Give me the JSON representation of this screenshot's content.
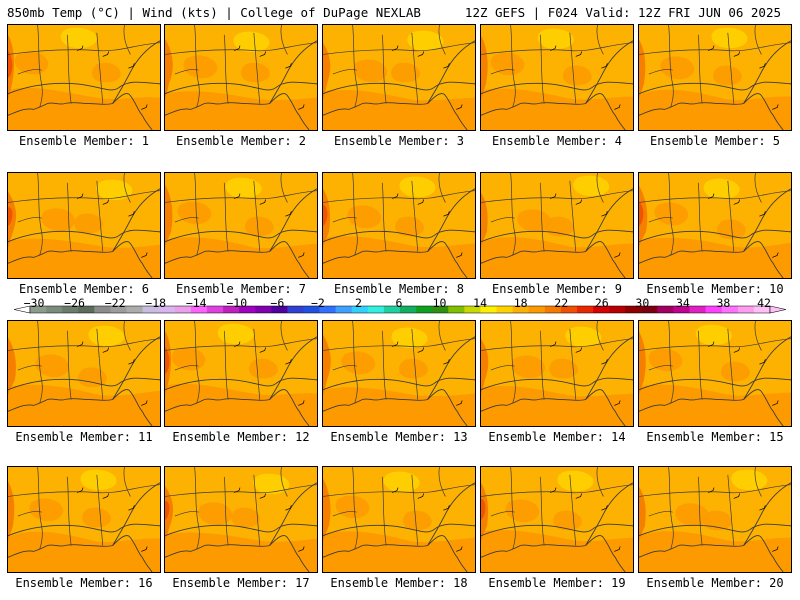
{
  "header": {
    "left": "850mb Temp (°C) | Wind (kts) | College of DuPage NEXLAB",
    "right": "12Z GEFS | F024 Valid: 12Z FRI JUN 06 2025"
  },
  "colorbar": {
    "tick_labels": [
      "−30",
      "−26",
      "−22",
      "−18",
      "−14",
      "−10",
      "−6",
      "−2",
      "2",
      "6",
      "10",
      "14",
      "18",
      "22",
      "26",
      "30",
      "34",
      "38",
      "42"
    ],
    "colors": [
      "#8c9c8c",
      "#7c8c7c",
      "#6c7c6c",
      "#5c6c5c",
      "#8c8c8c",
      "#9c9c9c",
      "#acacac",
      "#c8bce0",
      "#d8b4f0",
      "#e8a0e8",
      "#ff60ff",
      "#e040e0",
      "#c020c0",
      "#a000c0",
      "#8000b0",
      "#5000a0",
      "#3040d0",
      "#2050e0",
      "#3070ff",
      "#40a0ff",
      "#30d0ff",
      "#30f0e0",
      "#20d0a0",
      "#10b060",
      "#10a020",
      "#309010",
      "#80c000",
      "#c8d800",
      "#fff000",
      "#ffd200",
      "#fdb100",
      "#fd9a00",
      "#f57a00",
      "#f05000",
      "#e82800",
      "#d80000",
      "#b80000",
      "#900000",
      "#7a0010",
      "#a00060",
      "#c00090",
      "#e020c0",
      "#ff40ff",
      "#ff70ff",
      "#ff9cf0",
      "#ffc0f8"
    ]
  },
  "panels": [
    {
      "label": "Ensemble Member: 1"
    },
    {
      "label": "Ensemble Member: 2"
    },
    {
      "label": "Ensemble Member: 3"
    },
    {
      "label": "Ensemble Member: 4"
    },
    {
      "label": "Ensemble Member: 5"
    },
    {
      "label": "Ensemble Member: 6"
    },
    {
      "label": "Ensemble Member: 7"
    },
    {
      "label": "Ensemble Member: 8"
    },
    {
      "label": "Ensemble Member: 9"
    },
    {
      "label": "Ensemble Member: 10"
    },
    {
      "label": "Ensemble Member: 11"
    },
    {
      "label": "Ensemble Member: 12"
    },
    {
      "label": "Ensemble Member: 13"
    },
    {
      "label": "Ensemble Member: 14"
    },
    {
      "label": "Ensemble Member: 15"
    },
    {
      "label": "Ensemble Member: 16"
    },
    {
      "label": "Ensemble Member: 17"
    },
    {
      "label": "Ensemble Member: 18"
    },
    {
      "label": "Ensemble Member: 19"
    },
    {
      "label": "Ensemble Member: 20"
    }
  ],
  "map_colors": {
    "fill_14_18": "#fdb100",
    "fill_18_22": "#fd9a00",
    "fill_22_26": "#f57a00",
    "fill_26_30": "#f05000",
    "fill_10_14": "#ffd200",
    "border": "#3a3a3a"
  }
}
